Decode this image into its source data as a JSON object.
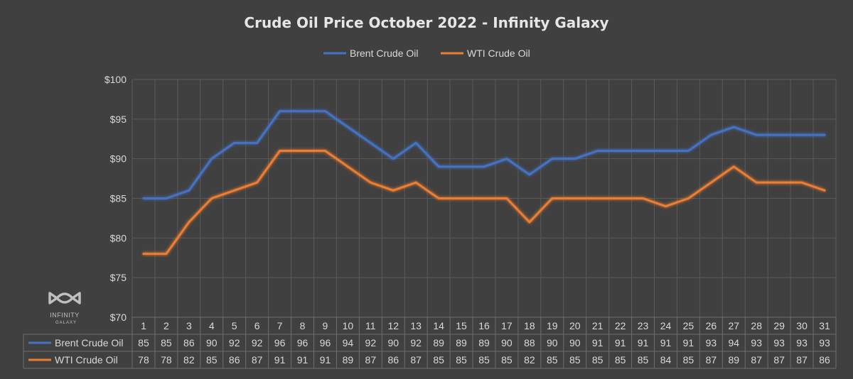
{
  "chart_data": {
    "type": "line",
    "title": "Crude Oil Price October 2022 - Infinity Galaxy",
    "categories": [
      "1",
      "2",
      "3",
      "4",
      "5",
      "6",
      "7",
      "8",
      "9",
      "10",
      "11",
      "12",
      "13",
      "14",
      "15",
      "16",
      "17",
      "18",
      "19",
      "20",
      "21",
      "22",
      "23",
      "24",
      "25",
      "26",
      "27",
      "28",
      "29",
      "30",
      "31"
    ],
    "series": [
      {
        "name": "Brent Crude Oil",
        "color": "#4472c4",
        "values": [
          85,
          85,
          86,
          90,
          92,
          92,
          96,
          96,
          96,
          94,
          92,
          90,
          92,
          89,
          89,
          89,
          90,
          88,
          90,
          90,
          91,
          91,
          91,
          91,
          91,
          93,
          94,
          93,
          93,
          93,
          93
        ]
      },
      {
        "name": "WTI Crude Oil",
        "color": "#ed7d31",
        "values": [
          78,
          78,
          82,
          85,
          86,
          87,
          91,
          91,
          91,
          89,
          87,
          86,
          87,
          85,
          85,
          85,
          85,
          82,
          85,
          85,
          85,
          85,
          85,
          84,
          85,
          87,
          89,
          87,
          87,
          87,
          86
        ]
      }
    ],
    "ylim": [
      70,
      100
    ],
    "yticks": [
      70,
      75,
      80,
      85,
      90,
      95,
      100
    ],
    "ytick_labels": [
      "$70",
      "$75",
      "$80",
      "$85",
      "$90",
      "$95",
      "$100"
    ],
    "legend_position": "top-center",
    "grid": true,
    "data_table": true
  },
  "logo": {
    "text": "INFINITY",
    "subtext": "GALAXY",
    "icon": "infinity-icon"
  }
}
